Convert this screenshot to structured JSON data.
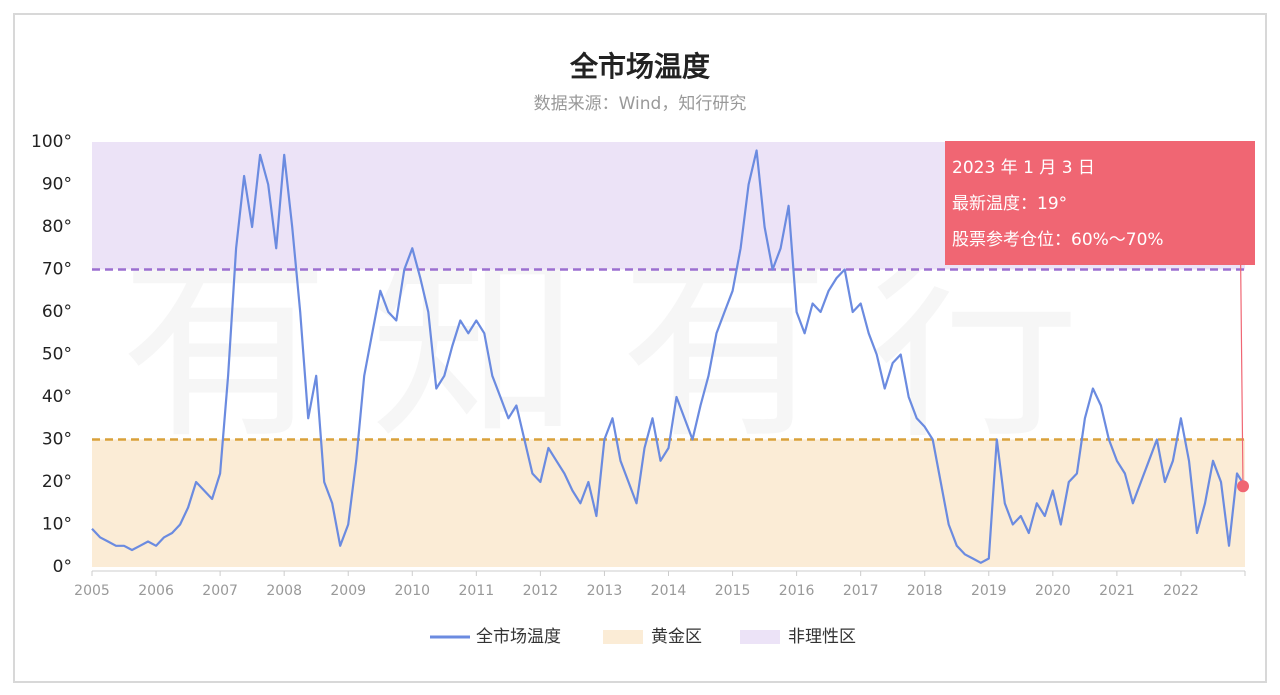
{
  "chart_data": {
    "type": "line",
    "title": "全市场温度",
    "subtitle": "数据来源：Wind，知行研究",
    "watermark": "有知有行",
    "x": [
      2005,
      2005.125,
      2005.25,
      2005.375,
      2005.5,
      2005.625,
      2005.75,
      2005.875,
      2006,
      2006.125,
      2006.25,
      2006.375,
      2006.5,
      2006.625,
      2006.75,
      2006.875,
      2007,
      2007.125,
      2007.25,
      2007.375,
      2007.5,
      2007.625,
      2007.75,
      2007.875,
      2008,
      2008.125,
      2008.25,
      2008.375,
      2008.5,
      2008.625,
      2008.75,
      2008.875,
      2009,
      2009.125,
      2009.25,
      2009.375,
      2009.5,
      2009.625,
      2009.75,
      2009.875,
      2010,
      2010.125,
      2010.25,
      2010.375,
      2010.5,
      2010.625,
      2010.75,
      2010.875,
      2011,
      2011.125,
      2011.25,
      2011.375,
      2011.5,
      2011.625,
      2011.75,
      2011.875,
      2012,
      2012.125,
      2012.25,
      2012.375,
      2012.5,
      2012.625,
      2012.75,
      2012.875,
      2013,
      2013.125,
      2013.25,
      2013.375,
      2013.5,
      2013.625,
      2013.75,
      2013.875,
      2014,
      2014.125,
      2014.25,
      2014.375,
      2014.5,
      2014.625,
      2014.75,
      2014.875,
      2015,
      2015.125,
      2015.25,
      2015.375,
      2015.5,
      2015.625,
      2015.75,
      2015.875,
      2016,
      2016.125,
      2016.25,
      2016.375,
      2016.5,
      2016.625,
      2016.75,
      2016.875,
      2017,
      2017.125,
      2017.25,
      2017.375,
      2017.5,
      2017.625,
      2017.75,
      2017.875,
      2018,
      2018.125,
      2018.25,
      2018.375,
      2018.5,
      2018.625,
      2018.75,
      2018.875,
      2019,
      2019.125,
      2019.25,
      2019.375,
      2019.5,
      2019.625,
      2019.75,
      2019.875,
      2020,
      2020.125,
      2020.25,
      2020.375,
      2020.5,
      2020.625,
      2020.75,
      2020.875,
      2021,
      2021.125,
      2021.25,
      2021.375,
      2021.5,
      2021.625,
      2021.75,
      2021.875,
      2022,
      2022.125,
      2022.25,
      2022.375,
      2022.5,
      2022.625,
      2022.75,
      2022.875,
      2023
    ],
    "series": [
      {
        "name": "全市场温度",
        "color": "#6b8be0",
        "values": [
          9,
          7,
          6,
          5,
          5,
          4,
          5,
          6,
          5,
          7,
          8,
          10,
          14,
          20,
          18,
          16,
          22,
          45,
          75,
          92,
          80,
          97,
          90,
          75,
          97,
          80,
          60,
          35,
          45,
          20,
          15,
          5,
          10,
          25,
          45,
          55,
          65,
          60,
          58,
          70,
          75,
          68,
          60,
          42,
          45,
          52,
          58,
          55,
          58,
          55,
          45,
          40,
          35,
          38,
          30,
          22,
          20,
          28,
          25,
          22,
          18,
          15,
          20,
          12,
          30,
          35,
          25,
          20,
          15,
          28,
          35,
          25,
          28,
          40,
          35,
          30,
          38,
          45,
          55,
          60,
          65,
          75,
          90,
          98,
          80,
          70,
          75,
          85,
          60,
          55,
          62,
          60,
          65,
          68,
          70,
          60,
          62,
          55,
          50,
          42,
          48,
          50,
          40,
          35,
          33,
          30,
          20,
          10,
          5,
          3,
          2,
          1,
          2,
          30,
          15,
          10,
          12,
          8,
          15,
          12,
          18,
          10,
          20,
          22,
          35,
          42,
          38,
          30,
          25,
          22,
          15,
          20,
          25,
          30,
          20,
          25,
          35,
          25,
          8,
          15,
          25,
          20,
          5,
          22,
          19
        ]
      }
    ],
    "bands": [
      {
        "name": "黄金区",
        "from": 0,
        "to": 30,
        "color": "#fbecd6",
        "line_color": "#d9a13a"
      },
      {
        "name": "非理性区",
        "from": 70,
        "to": 100,
        "color": "#ece3f7",
        "line_color": "#9b6fd0"
      }
    ],
    "xlim": [
      2005,
      2023
    ],
    "xticks": [
      2005,
      2006,
      2007,
      2008,
      2009,
      2010,
      2011,
      2012,
      2013,
      2014,
      2015,
      2016,
      2017,
      2018,
      2019,
      2020,
      2021,
      2022
    ],
    "ylim": [
      0,
      100
    ],
    "yticks": [
      {
        "value": 0,
        "label": "0°"
      },
      {
        "value": 10,
        "label": "10°"
      },
      {
        "value": 20,
        "label": "20°"
      },
      {
        "value": 30,
        "label": "30°"
      },
      {
        "value": 40,
        "label": "40°"
      },
      {
        "value": 50,
        "label": "50°"
      },
      {
        "value": 60,
        "label": "60°"
      },
      {
        "value": 70,
        "label": "70°"
      },
      {
        "value": 80,
        "label": "80°"
      },
      {
        "value": 90,
        "label": "90°"
      },
      {
        "value": 100,
        "label": "100°"
      }
    ],
    "annotation": {
      "color": "#f06673",
      "lines": [
        "2023 年 1 月 3 日",
        "最新温度：19°",
        "股票参考仓位：60%～70%"
      ]
    }
  }
}
